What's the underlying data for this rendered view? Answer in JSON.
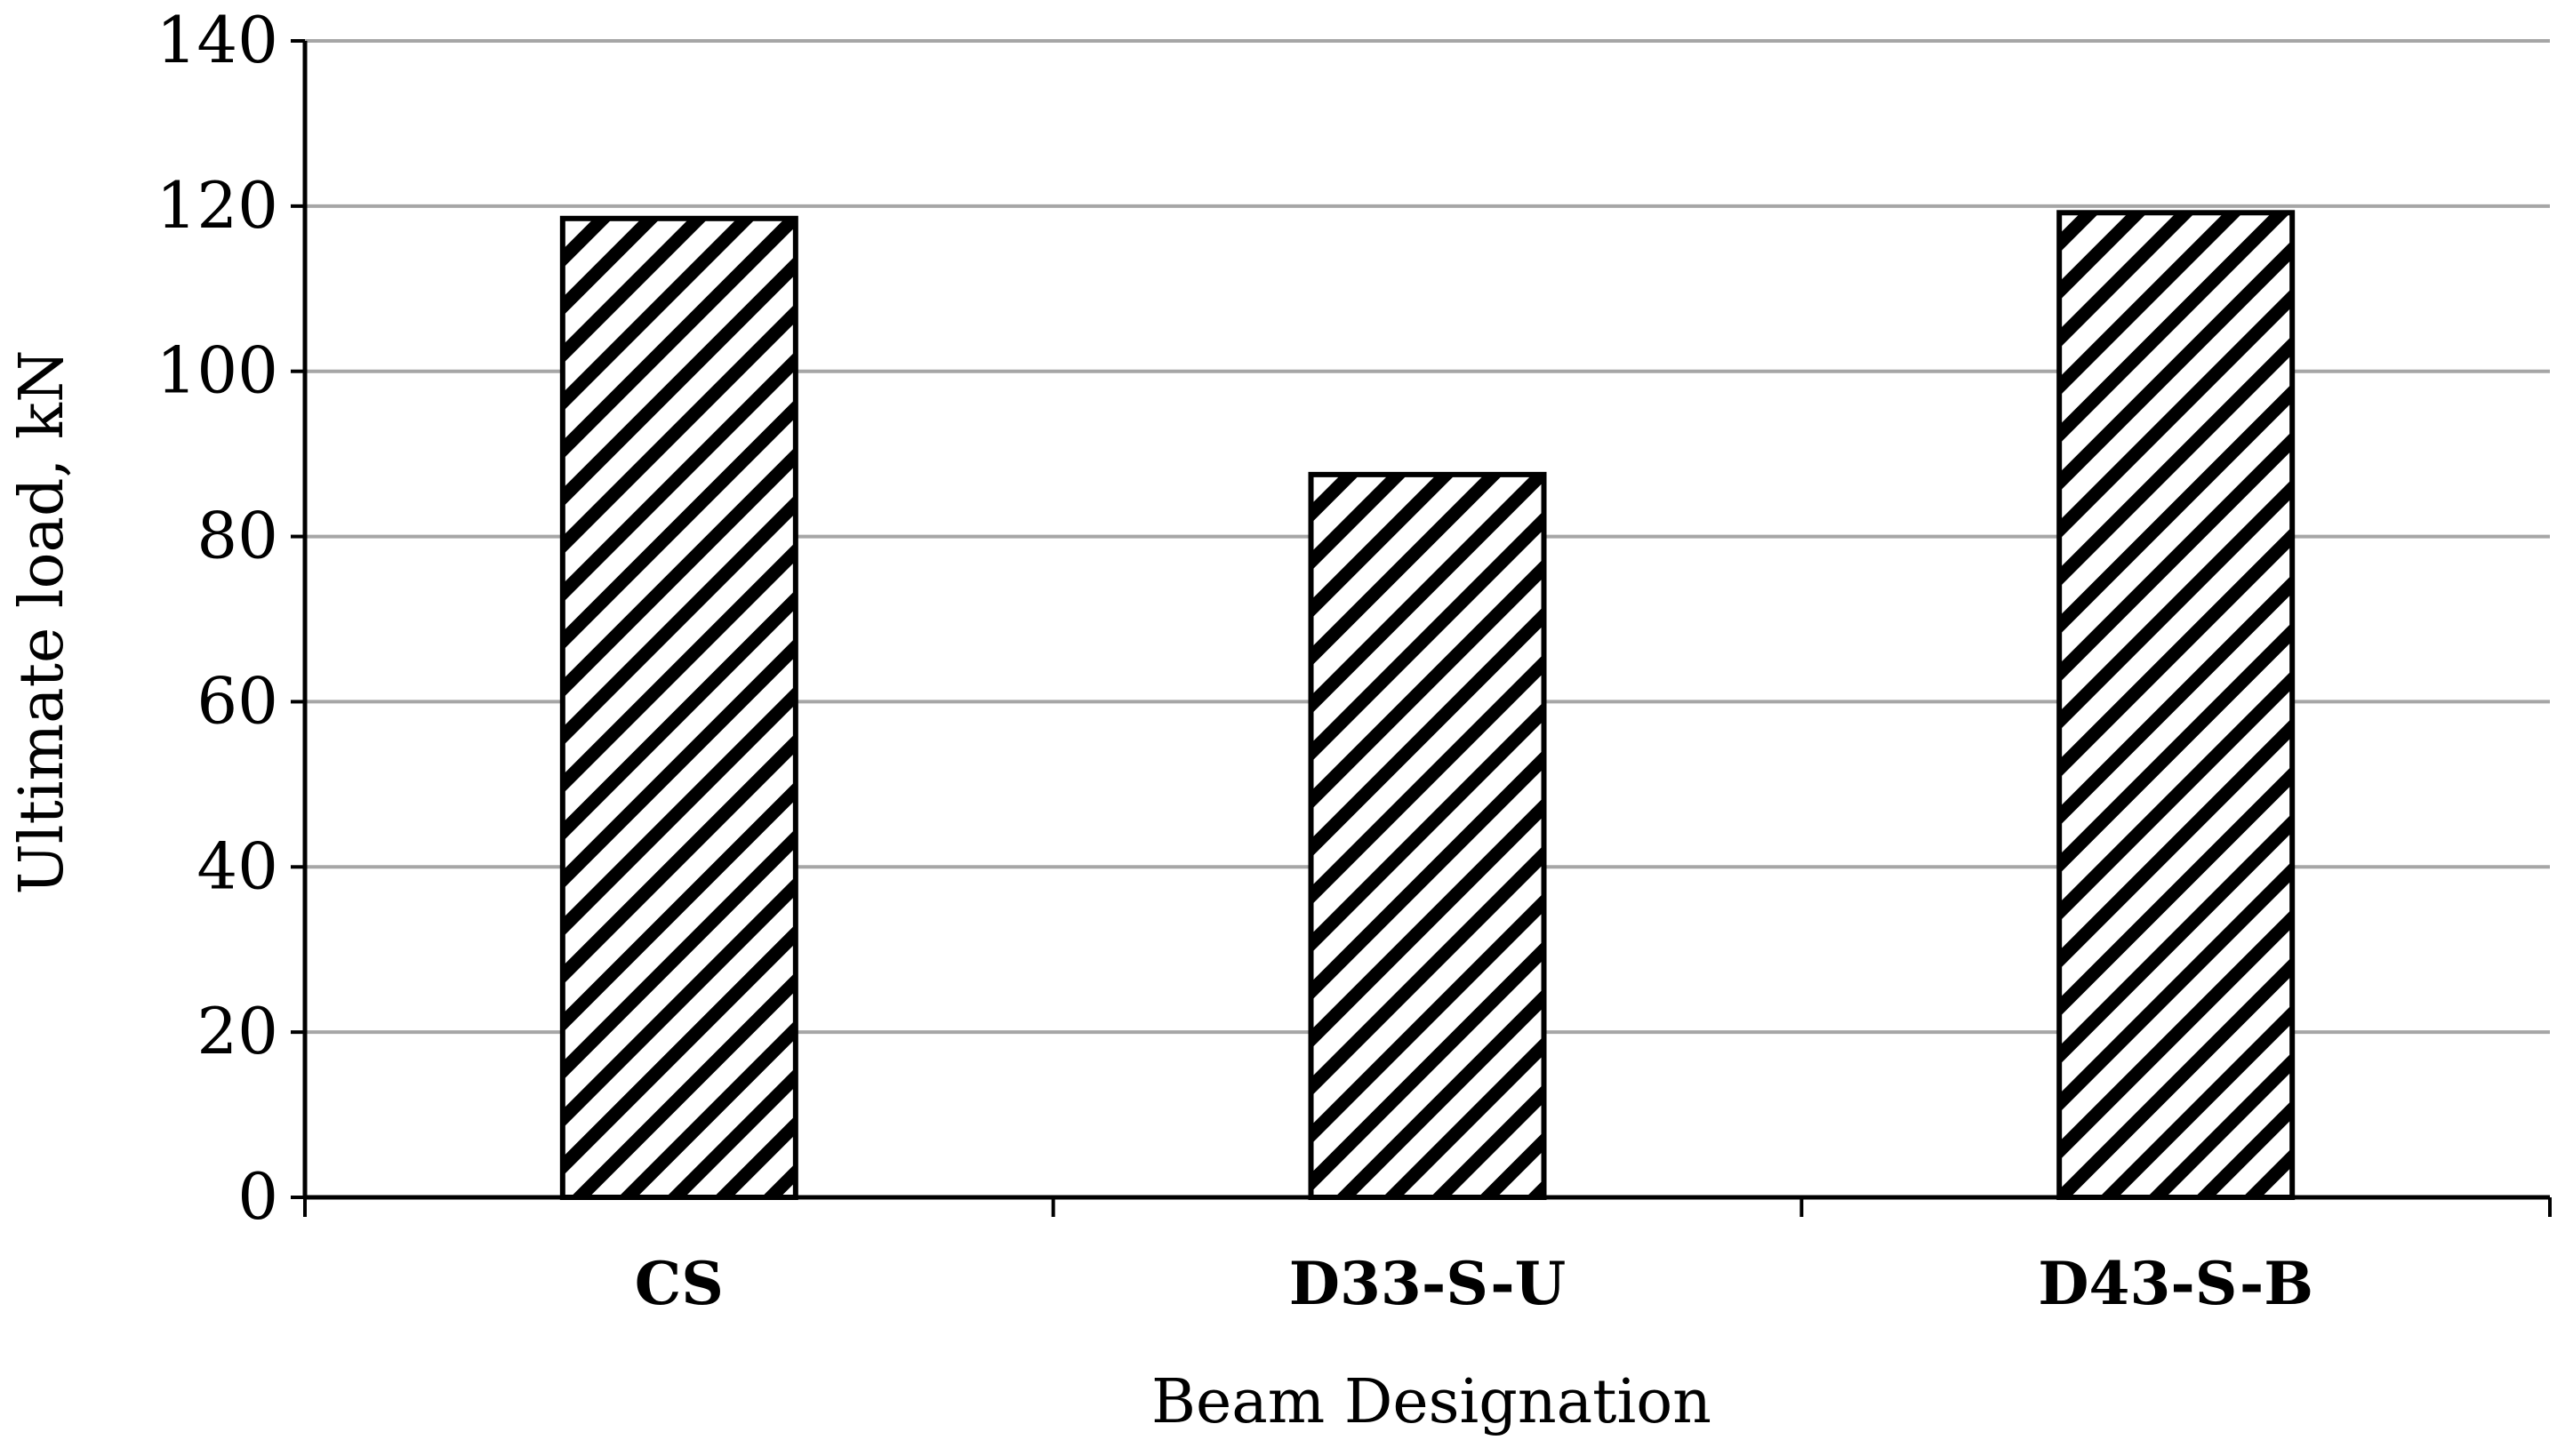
{
  "chart_data": {
    "type": "bar",
    "title": "",
    "xlabel": "Beam Designation",
    "ylabel": "Ultimate load, kN",
    "categories": [
      "CS",
      "D33-S-U",
      "D43-S-B"
    ],
    "series": [
      {
        "values": [
          118.5,
          87.5,
          119.2
        ]
      }
    ],
    "ylim": [
      0,
      140
    ],
    "yticks": [
      0,
      20,
      40,
      60,
      80,
      100,
      120,
      140
    ],
    "grid": true,
    "legend": "none",
    "bar_fill": "diagonal-hatch",
    "colors": {
      "grid": "#a6a6a6",
      "axis": "#000000",
      "bar_outline": "#000000",
      "hatch": "#000000",
      "bar_background": "#ffffff"
    }
  }
}
